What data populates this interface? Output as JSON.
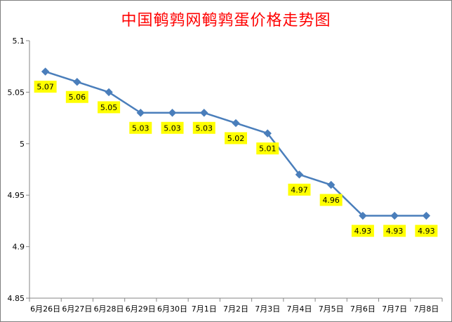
{
  "chart_data": {
    "type": "line",
    "title": "中国鹌鹑网鹌鹑蛋价格走势图",
    "xlabel": "",
    "ylabel": "",
    "categories": [
      "6月26日",
      "6月27日",
      "6月28日",
      "6月29日",
      "6月30日",
      "7月1日",
      "7月2日",
      "7月3日",
      "7月4日",
      "7月5日",
      "7月6日",
      "7月7日",
      "7月8日"
    ],
    "series": [
      {
        "values": [
          5.07,
          5.06,
          5.05,
          5.03,
          5.03,
          5.03,
          5.02,
          5.01,
          4.97,
          4.96,
          4.93,
          4.93,
          4.93
        ],
        "labels": [
          "5.07",
          "5.06",
          "5.05",
          "5.03",
          "5.03",
          "5.03",
          "5.02",
          "5.01",
          "4.97",
          "4.96",
          "4.93",
          "4.93",
          "4.93"
        ],
        "color": "#4a7ebb"
      }
    ],
    "ylim": [
      4.85,
      5.1
    ],
    "yticks": [
      "4.85",
      "4.9",
      "4.95",
      "5",
      "5.05",
      "5.1"
    ],
    "grid": false,
    "legend": "none",
    "title_color": "#ff0000",
    "data_label_color": "#ffff00"
  }
}
